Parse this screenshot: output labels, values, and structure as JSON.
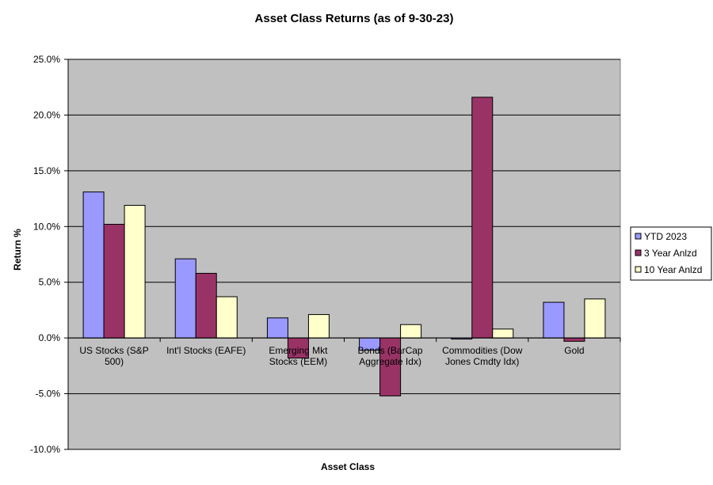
{
  "chart_data": {
    "type": "bar",
    "title": "Asset Class Returns (as of 9-30-23)",
    "xlabel": "Asset  Class",
    "ylabel": "Return %",
    "ylim": [
      -10,
      25
    ],
    "ytick_step": 5,
    "ytick_labels": [
      "-10.0%",
      "-5.0%",
      "0.0%",
      "5.0%",
      "10.0%",
      "15.0%",
      "20.0%",
      "25.0%"
    ],
    "grid": true,
    "legend_position": "right",
    "plot_background": "#c0c0c0",
    "categories": [
      [
        "US Stocks (S&P",
        "500)"
      ],
      [
        "Int'l Stocks (EAFE)"
      ],
      [
        "Emerging Mkt",
        "Stocks (EEM)"
      ],
      [
        "Bonds (BarCap",
        "Aggregate Idx)"
      ],
      [
        "Commodities (Dow",
        "Jones Cmdty Idx)"
      ],
      [
        "Gold"
      ]
    ],
    "series": [
      {
        "name": "YTD 2023",
        "color": "#9999ff",
        "values": [
          13.1,
          7.1,
          1.8,
          -1.1,
          -0.1,
          3.2
        ]
      },
      {
        "name": "3 Year Anlzd",
        "color": "#993366",
        "values": [
          10.2,
          5.8,
          -1.8,
          -5.2,
          21.6,
          -0.3
        ]
      },
      {
        "name": "10 Year Anlzd",
        "color": "#ffffcc",
        "values": [
          11.9,
          3.7,
          2.1,
          1.2,
          0.8,
          3.5
        ]
      }
    ]
  }
}
